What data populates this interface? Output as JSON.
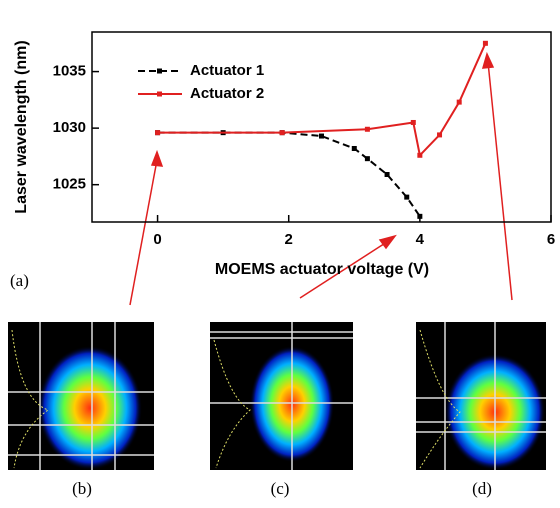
{
  "chart_data": {
    "type": "line",
    "xlabel": "MOEMS actuator voltage (V)",
    "ylabel": "Laser wavelength (nm)",
    "xlim": [
      -1,
      6
    ],
    "xticks": [
      0,
      2,
      4,
      6
    ],
    "ylim": [
      1021.7,
      1038.5
    ],
    "yticks": [
      1025,
      1030,
      1035
    ],
    "legend": "upper left",
    "series": [
      {
        "name": "Actuator 1",
        "color": "#000000",
        "dashed": true,
        "x": [
          0,
          1,
          1.9,
          2.5,
          3,
          3.2,
          3.5,
          3.8,
          4
        ],
        "values": [
          1029.6,
          1029.6,
          1029.6,
          1029.3,
          1028.2,
          1027.3,
          1025.9,
          1023.9,
          1022.2
        ]
      },
      {
        "name": "Actuator 2",
        "color": "#e02020",
        "dashed": false,
        "x": [
          0,
          1.9,
          3.2,
          3.9,
          4,
          4.3,
          4.6,
          5
        ],
        "values": [
          1029.6,
          1029.6,
          1029.9,
          1030.5,
          1027.6,
          1029.4,
          1032.3,
          1037.5
        ]
      }
    ]
  },
  "figure_labels": [
    "(a)",
    "(b)",
    "(c)",
    "(d)"
  ]
}
